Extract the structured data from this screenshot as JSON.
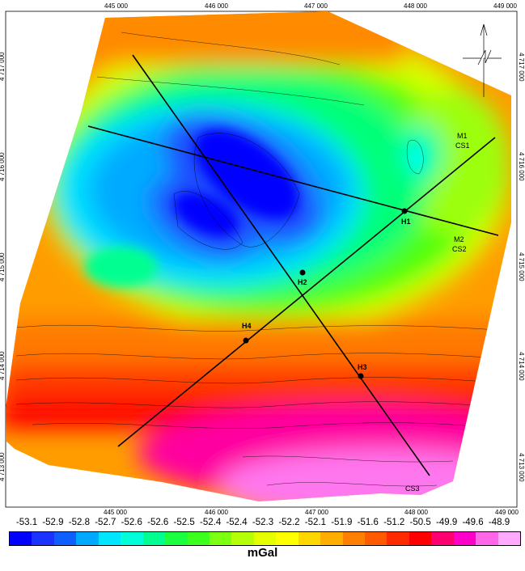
{
  "x_ticks": [
    "445 000",
    "446 000",
    "447 000",
    "448 000",
    "449 000"
  ],
  "y_ticks": [
    "4 717 000",
    "4 716 000",
    "4 715 000",
    "4 714 000",
    "4 713 000"
  ],
  "profiles": [
    {
      "name": "M1"
    },
    {
      "name": "CS1"
    },
    {
      "name": "M2"
    },
    {
      "name": "CS2"
    },
    {
      "name": "CS3"
    }
  ],
  "points": [
    "H1",
    "H2",
    "H3",
    "H4"
  ],
  "colorbar": {
    "labels": [
      "-53.1",
      "-52.9",
      "-52.8",
      "-52.7",
      "-52.6",
      "-52.6",
      "-52.5",
      "-52.4",
      "-52.4",
      "-52.3",
      "-52.2",
      "-52.1",
      "-51.9",
      "-51.6",
      "-51.2",
      "-50.5",
      "-49.9",
      "-49.6",
      "-48.9"
    ],
    "unit": "mGal",
    "colors": [
      "#0000ff",
      "#1a33ff",
      "#0f5fff",
      "#00a8ff",
      "#00e6ff",
      "#00ffd8",
      "#00ff90",
      "#1aff40",
      "#3cff1e",
      "#7cff10",
      "#b4ff08",
      "#e6ff00",
      "#ffff00",
      "#ffd700",
      "#ffae00",
      "#ff8000",
      "#ff5a00",
      "#ff2a00",
      "#ff0000",
      "#ff0070",
      "#ff00c8",
      "#ff66e8",
      "#ffaaff"
    ]
  },
  "north_arrow": "north-arrow-icon"
}
